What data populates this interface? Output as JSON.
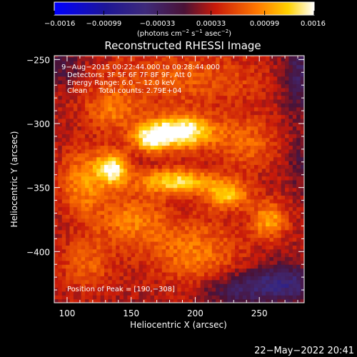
{
  "chart_data": {
    "type": "heatmap",
    "title": "Reconstructed RHESSI Image",
    "xlabel": "Heliocentric X (arcsec)",
    "ylabel": "Heliocentric Y (arcsec)",
    "xlim": [
      90,
      285
    ],
    "ylim": [
      -440,
      -247
    ],
    "x_ticks": [
      100,
      150,
      200,
      250
    ],
    "x_tick_labels": [
      "100",
      "150",
      "200",
      "250"
    ],
    "y_ticks": [
      -250,
      -300,
      -350,
      -400
    ],
    "y_tick_labels": [
      "−250",
      "−300",
      "−350",
      "−400"
    ],
    "colorbar": {
      "range": [
        -0.0016,
        0.0016
      ],
      "ticks": [
        -0.0016,
        -0.00099,
        -0.00033,
        0.00033,
        0.00099,
        0.0016
      ],
      "tick_labels": [
        "−0.0016",
        "−0.00099",
        "−0.00033",
        "0.00033",
        "0.00099",
        "0.0016"
      ],
      "unit_main": "(photons cm",
      "unit_exp1": "−2",
      "unit_mid": " s",
      "unit_exp2": "−1",
      "unit_mid2": " asec",
      "unit_exp3": "−2",
      "unit_end": ")"
    },
    "sources": [
      {
        "x": 188,
        "y": -306,
        "amp": 0.0015,
        "sx": 18,
        "sy": 9
      },
      {
        "x": 165,
        "y": -312,
        "amp": 0.00095,
        "sx": 10,
        "sy": 7
      },
      {
        "x": 135,
        "y": -335,
        "amp": 0.0013,
        "sx": 9,
        "sy": 9
      },
      {
        "x": 112,
        "y": -345,
        "amp": 0.0007,
        "sx": 12,
        "sy": 18
      },
      {
        "x": 185,
        "y": -345,
        "amp": 0.0011,
        "sx": 20,
        "sy": 7
      },
      {
        "x": 225,
        "y": -355,
        "amp": 0.00095,
        "sx": 12,
        "sy": 8
      },
      {
        "x": 258,
        "y": -375,
        "amp": 0.0008,
        "sx": 10,
        "sy": 10
      },
      {
        "x": 150,
        "y": -375,
        "amp": 0.0006,
        "sx": 20,
        "sy": 15
      },
      {
        "x": 190,
        "y": -265,
        "amp": 0.00045,
        "sx": 50,
        "sy": 15
      },
      {
        "x": 135,
        "y": -290,
        "amp": 0.00055,
        "sx": 15,
        "sy": 12
      },
      {
        "x": 240,
        "y": -315,
        "amp": 0.0005,
        "sx": 18,
        "sy": 15
      },
      {
        "x": 200,
        "y": -400,
        "amp": 0.0006,
        "sx": 25,
        "sy": 18
      },
      {
        "x": 115,
        "y": -410,
        "amp": 0.00045,
        "sx": 15,
        "sy": 15
      },
      {
        "x": 268,
        "y": -425,
        "amp": -0.0008,
        "sx": 18,
        "sy": 10
      },
      {
        "x": 230,
        "y": -430,
        "amp": -0.0005,
        "sx": 18,
        "sy": 9
      },
      {
        "x": 283,
        "y": -262,
        "amp": -0.0006,
        "sx": 12,
        "sy": 20
      },
      {
        "x": 95,
        "y": -255,
        "amp": -0.0004,
        "sx": 12,
        "sy": 10
      },
      {
        "x": 283,
        "y": -330,
        "amp": -0.0003,
        "sx": 8,
        "sy": 15
      }
    ],
    "annotations": {
      "line1": "9−Aug−2015 00:22:44.000 to 00:28:44.000",
      "line2": "Detectors: 3F 5F 6F 7F 8F 9F, Att 0",
      "line3": "Energy Range: 6.0 − 12.0 keV",
      "line4": "Clean     Total counts: 2.79E+04",
      "peak": "Position of Peak = [190,−308]"
    }
  },
  "footer": {
    "timestamp": "22−May−2022 20:41"
  }
}
